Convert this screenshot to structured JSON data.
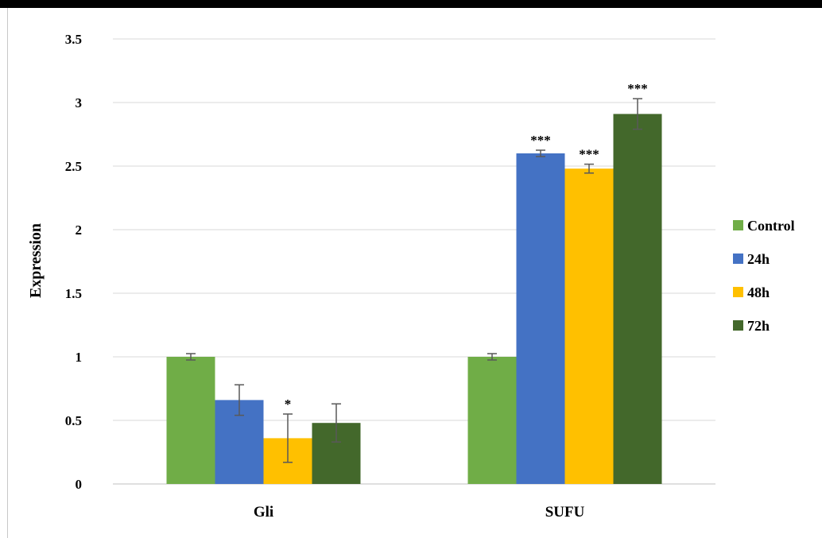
{
  "chart_data": {
    "type": "bar",
    "title": "",
    "xlabel": "",
    "ylabel": "Expression",
    "ylim": [
      0,
      3.5
    ],
    "yticks": [
      "0",
      "0.5",
      "1",
      "1.5",
      "2",
      "2.5",
      "3",
      "3.5"
    ],
    "grid": true,
    "legend_position": "right",
    "categories": [
      "Gli",
      "SUFU"
    ],
    "series": [
      {
        "name": "Control",
        "color": "#70ad47",
        "values": [
          1.0,
          1.0
        ],
        "errors": [
          0.025,
          0.025
        ],
        "significance": [
          "",
          ""
        ]
      },
      {
        "name": "24h",
        "color": "#4472c4",
        "values": [
          0.66,
          2.6
        ],
        "errors": [
          0.12,
          0.025
        ],
        "significance": [
          "",
          "***"
        ]
      },
      {
        "name": "48h",
        "color": "#ffc000",
        "values": [
          0.36,
          2.48
        ],
        "errors": [
          0.19,
          0.035
        ],
        "significance": [
          "*",
          "***"
        ]
      },
      {
        "name": "72h",
        "color": "#43682b",
        "values": [
          0.48,
          2.91
        ],
        "errors": [
          0.15,
          0.12
        ],
        "significance": [
          "",
          "***"
        ]
      }
    ]
  }
}
